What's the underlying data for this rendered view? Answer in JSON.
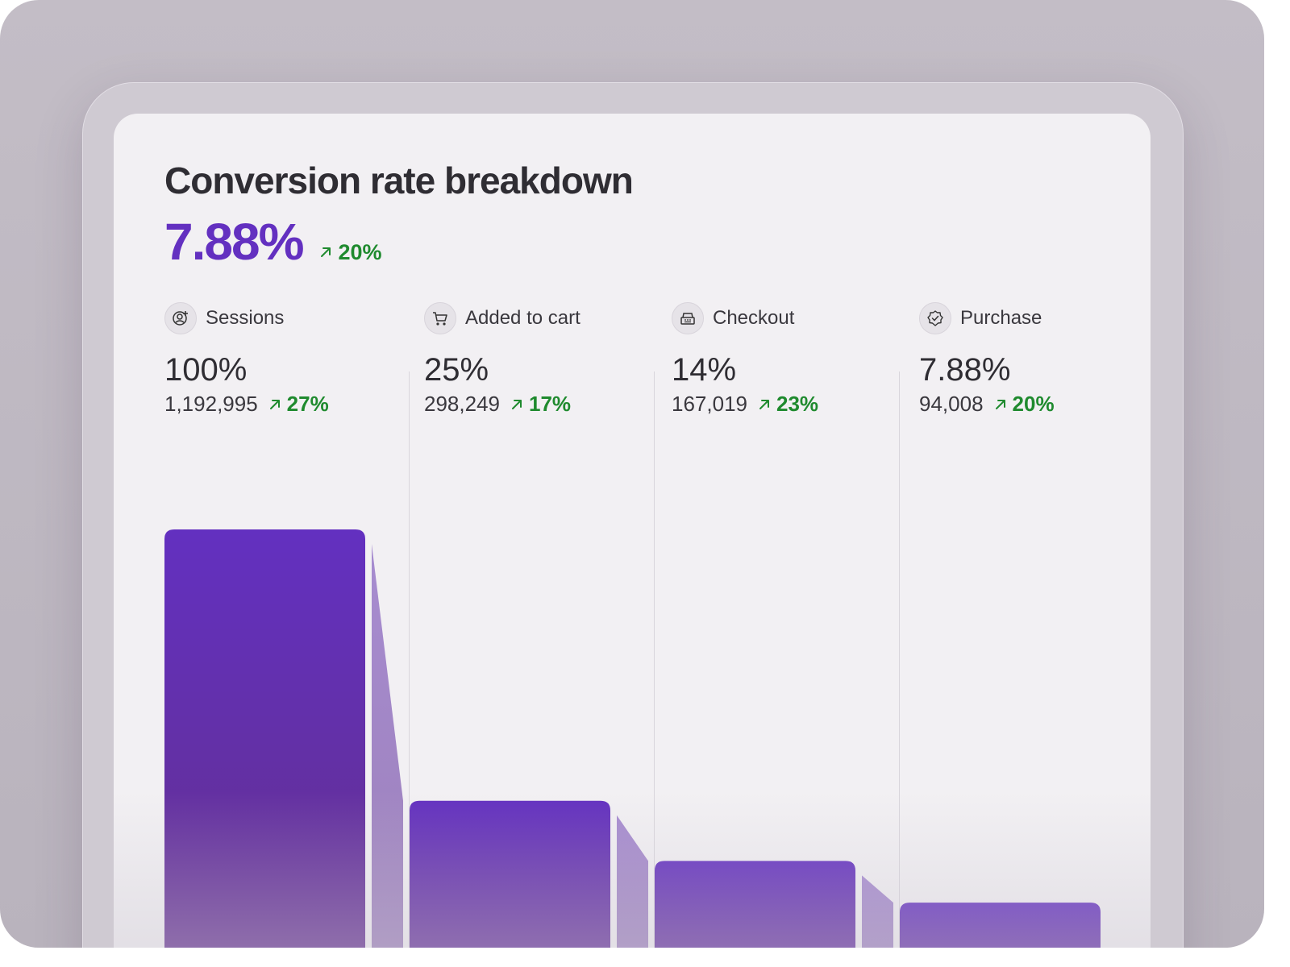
{
  "title": "Conversion rate breakdown",
  "headline": {
    "value": "7.88%",
    "delta": "20%"
  },
  "colors": {
    "bar": "#6330c0",
    "connector": "#a78cd0",
    "positive": "#1f8a2e"
  },
  "stages": [
    {
      "label": "Sessions",
      "icon": "user-plus-icon",
      "percent": "100%",
      "count": "1,192,995",
      "delta": "27%"
    },
    {
      "label": "Added to cart",
      "icon": "shopping-cart-icon",
      "percent": "25%",
      "count": "298,249",
      "delta": "17%"
    },
    {
      "label": "Checkout",
      "icon": "cash-register-icon",
      "percent": "14%",
      "count": "167,019",
      "delta": "23%"
    },
    {
      "label": "Purchase",
      "icon": "badge-check-icon",
      "percent": "7.88%",
      "count": "94,008",
      "delta": "20%"
    }
  ],
  "chart_data": {
    "type": "bar",
    "categories": [
      "Sessions",
      "Added to cart",
      "Checkout",
      "Purchase"
    ],
    "values": [
      100,
      25,
      14,
      7.88
    ],
    "counts": [
      1192995,
      298249,
      167019,
      94008
    ],
    "deltas": [
      27,
      17,
      23,
      20
    ],
    "title": "Conversion rate breakdown",
    "ylim": [
      0,
      100
    ],
    "grid": false,
    "legend": "none"
  }
}
